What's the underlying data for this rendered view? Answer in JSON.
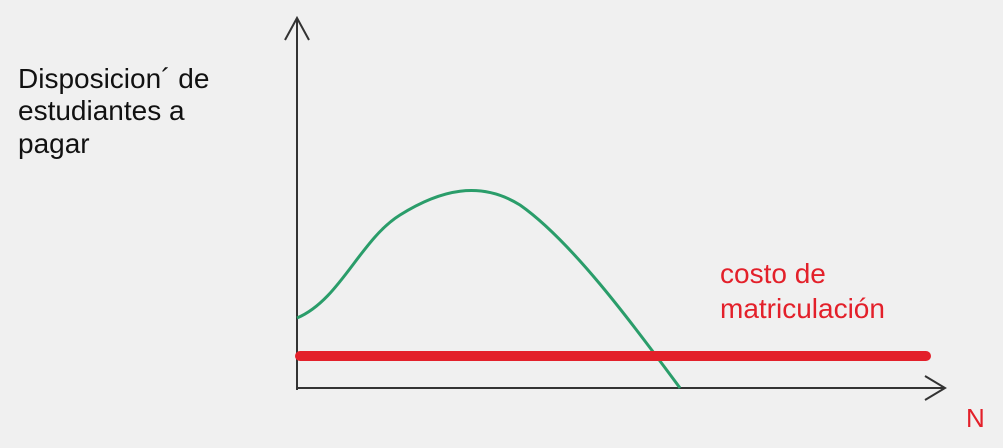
{
  "y_axis_label": {
    "lines": [
      "Disposicion´ de",
      "estudiantes a",
      "pagar"
    ]
  },
  "cost_label": {
    "lines": [
      "costo de",
      "matriculación"
    ]
  },
  "x_axis_label": "N"
}
